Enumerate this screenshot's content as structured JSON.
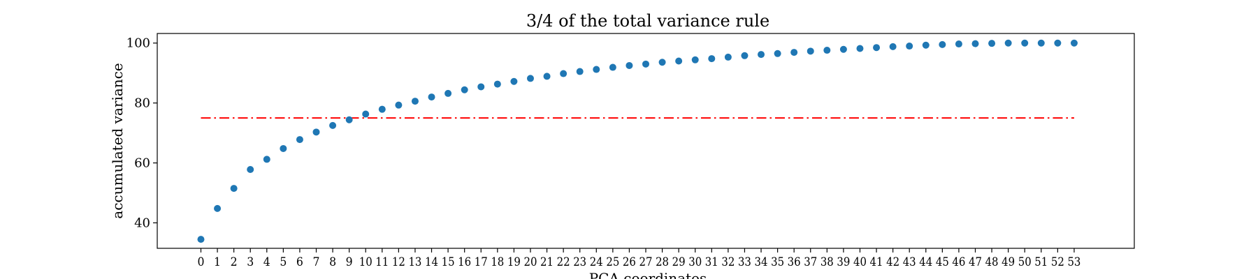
{
  "chart_data": {
    "type": "scatter",
    "title": "3/4 of the total variance rule",
    "xlabel": "PCA coordinates",
    "ylabel": "accumulated variance",
    "x": [
      0,
      1,
      2,
      3,
      4,
      5,
      6,
      7,
      8,
      9,
      10,
      11,
      12,
      13,
      14,
      15,
      16,
      17,
      18,
      19,
      20,
      21,
      22,
      23,
      24,
      25,
      26,
      27,
      28,
      29,
      30,
      31,
      32,
      33,
      34,
      35,
      36,
      37,
      38,
      39,
      40,
      41,
      42,
      43,
      44,
      45,
      46,
      47,
      48,
      49,
      50,
      51,
      52,
      53
    ],
    "x_tick_labels": [
      "0",
      "1",
      "2",
      "3",
      "4",
      "5",
      "6",
      "7",
      "8",
      "9",
      "10",
      "11",
      "12",
      "13",
      "14",
      "15",
      "16",
      "17",
      "18",
      "19",
      "20",
      "21",
      "22",
      "23",
      "24",
      "25",
      "26",
      "27",
      "28",
      "29",
      "30",
      "31",
      "32",
      "33",
      "34",
      "35",
      "36",
      "37",
      "38",
      "39",
      "40",
      "41",
      "42",
      "43",
      "44",
      "45",
      "46",
      "47",
      "48",
      "49",
      "50",
      "51",
      "52",
      "53"
    ],
    "y": [
      34.5,
      44.8,
      51.5,
      57.8,
      61.2,
      64.8,
      67.8,
      70.3,
      72.5,
      74.4,
      76.3,
      77.9,
      79.3,
      80.6,
      82.0,
      83.2,
      84.4,
      85.4,
      86.3,
      87.2,
      88.2,
      88.9,
      89.8,
      90.5,
      91.2,
      91.9,
      92.5,
      93.0,
      93.6,
      94.0,
      94.4,
      94.8,
      95.3,
      95.8,
      96.2,
      96.5,
      96.9,
      97.3,
      97.6,
      97.9,
      98.2,
      98.5,
      98.8,
      99.0,
      99.3,
      99.5,
      99.7,
      99.8,
      99.9,
      100.0,
      100.0,
      100.0,
      100.0,
      100.0
    ],
    "y_ticks": [
      40,
      60,
      80,
      100
    ],
    "y_tick_labels": [
      "40",
      "60",
      "80",
      "100"
    ],
    "xlim": [
      -2.65,
      56.65
    ],
    "ylim": [
      31.5,
      103.2
    ],
    "threshold": {
      "y": 75,
      "x_start": 0,
      "x_end": 53,
      "color": "#ff0000",
      "style": "dash-dot"
    },
    "series_color": "#1f77b4",
    "grid": false,
    "legend": "none"
  }
}
